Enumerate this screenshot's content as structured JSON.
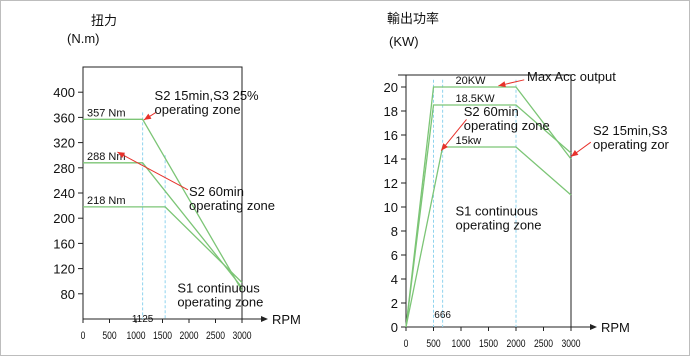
{
  "chart_data": [
    {
      "type": "line",
      "title": "",
      "ylabel": "扭力",
      "yunit": "(N.m)",
      "xlabel": "RPM",
      "xlim": [
        0,
        3000
      ],
      "ylim": [
        40,
        440
      ],
      "x_ticks": [
        "0",
        "500",
        "1000",
        "1500",
        "2000",
        "2500",
        "3000"
      ],
      "y_ticks": [
        "80",
        "120",
        "160",
        "200",
        "240",
        "280",
        "320",
        "360",
        "400"
      ],
      "grid": false,
      "series": [
        {
          "name": "S2 15min,S3 25%",
          "color": "#7cc576",
          "x": [
            0,
            1125,
            3000
          ],
          "y": [
            357,
            357,
            85
          ]
        },
        {
          "name": "S2 60min",
          "color": "#7cc576",
          "x": [
            0,
            1125,
            3000
          ],
          "y": [
            288,
            288,
            90
          ]
        },
        {
          "name": "S1 continuous",
          "color": "#7cc576",
          "x": [
            0,
            1550,
            3000
          ],
          "y": [
            218,
            218,
            98
          ]
        }
      ],
      "value_labels": [
        {
          "text": "357 Nm",
          "x": 0,
          "y": 357
        },
        {
          "text": "288 Nm",
          "x": 0,
          "y": 288
        },
        {
          "text": "218 Nm",
          "x": 0,
          "y": 218
        }
      ],
      "vlines": [
        {
          "x": 1125,
          "label": "1125"
        },
        {
          "x": 1550,
          "label": ""
        }
      ],
      "annotations": [
        {
          "lines": [
            "S2 15min,S3 25%",
            "operating zone"
          ],
          "x": 1350,
          "y": 388
        },
        {
          "lines": [
            "S2 60min",
            "operating zone"
          ],
          "x": 2000,
          "y": 235
        },
        {
          "lines": [
            "S1 continuous",
            "operating zone"
          ],
          "x": 1780,
          "y": 82
        }
      ],
      "arrows": [
        {
          "from": [
            1380,
            368
          ],
          "to": [
            1150,
            356
          ]
        },
        {
          "from": [
            1980,
            245
          ],
          "to": [
            650,
            305
          ]
        }
      ]
    },
    {
      "type": "line",
      "title": "",
      "ylabel": "輸出功率",
      "yunit": "(KW)",
      "xlabel": "RPM",
      "xlim": [
        0,
        3000
      ],
      "ylim": [
        0,
        21
      ],
      "x_ticks": [
        "0",
        "500",
        "1000",
        "1500",
        "2000",
        "2500",
        "3000"
      ],
      "y_ticks": [
        "0",
        "2",
        "4",
        "6",
        "8",
        "10",
        "12",
        "14",
        "16",
        "18",
        "20"
      ],
      "grid": false,
      "series": [
        {
          "name": "Max Acc output",
          "color": "#7cc576",
          "x": [
            0,
            500,
            2000,
            3000
          ],
          "y": [
            0,
            20,
            20,
            14
          ]
        },
        {
          "name": "S2 15min,S3",
          "color": "#7cc576",
          "x": [
            0,
            500,
            2000,
            3000
          ],
          "y": [
            0,
            18.5,
            18.5,
            14.5
          ]
        },
        {
          "name": "S1 continuous",
          "color": "#7cc576",
          "x": [
            0,
            666,
            2000,
            3000
          ],
          "y": [
            0,
            15,
            15,
            11
          ]
        }
      ],
      "value_labels": [
        {
          "text": "20KW",
          "x": 900,
          "y": 20
        },
        {
          "text": "18.5KW",
          "x": 900,
          "y": 18.5
        },
        {
          "text": "15kw",
          "x": 900,
          "y": 15
        }
      ],
      "vlines": [
        {
          "x": 500,
          "label": ""
        },
        {
          "x": 666,
          "label": "666"
        },
        {
          "x": 2000,
          "label": ""
        }
      ],
      "annotations": [
        {
          "lines": [
            "Max Acc output"
          ],
          "x": 2200,
          "y": 20.5
        },
        {
          "lines": [
            "S2 60min",
            "operating zone"
          ],
          "x": 1050,
          "y": 17.6
        },
        {
          "lines": [
            "S2 15min,S3",
            "operating zor"
          ],
          "x": 3400,
          "y": 16
        },
        {
          "lines": [
            "S1 continuous",
            "operating zone"
          ],
          "x": 900,
          "y": 9.3
        }
      ],
      "arrows": [
        {
          "from": [
            2150,
            20.6
          ],
          "to": [
            1680,
            20.1
          ]
        },
        {
          "from": [
            1100,
            17.3
          ],
          "to": [
            640,
            14.7
          ]
        },
        {
          "from": [
            3360,
            15.4
          ],
          "to": [
            3000,
            14.2
          ]
        }
      ]
    }
  ]
}
